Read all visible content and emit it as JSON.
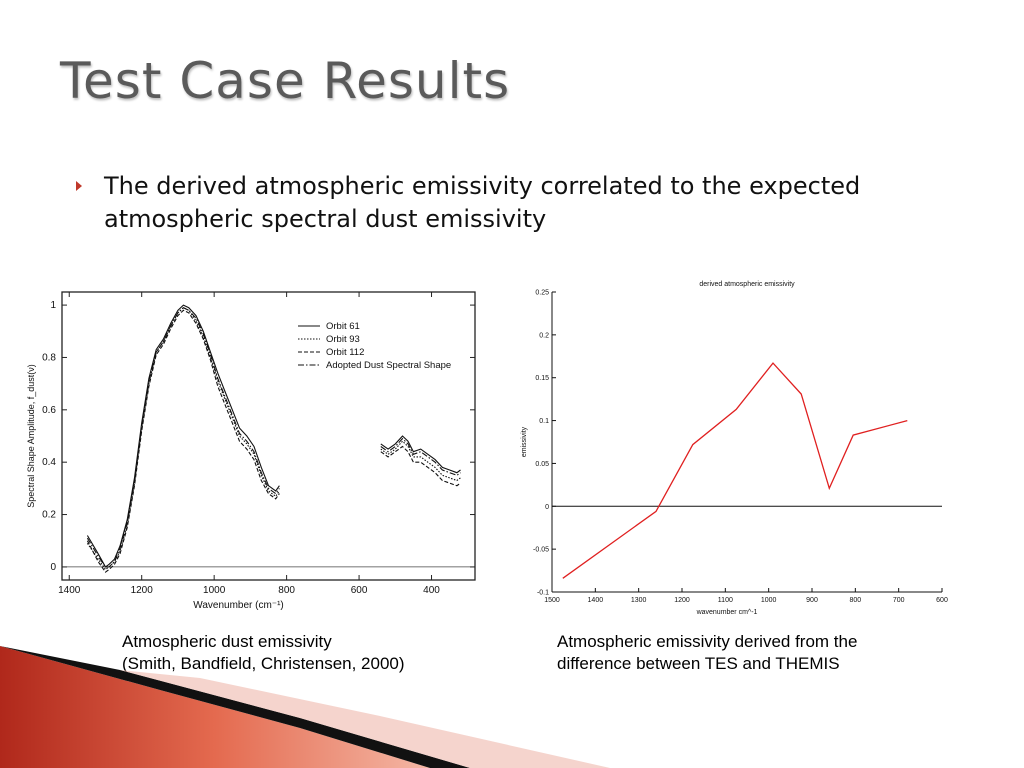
{
  "slide": {
    "title": "Test Case Results",
    "bullet": "The derived atmospheric emissivity correlated to the expected atmospheric spectral dust emissivity"
  },
  "captions": {
    "left": [
      "Atmospheric dust emissivity",
      "(Smith, Bandfield, Christensen, 2000)"
    ],
    "right": [
      "Atmospheric emissivity derived from the",
      "difference between TES and THEMIS"
    ]
  },
  "colors": {
    "title": "#5a5a5a",
    "bullet_marker": "#c0392b",
    "derived_line": "#e02020",
    "decor_red": "#c0392b",
    "decor_black": "#111111"
  },
  "chart_data": [
    {
      "type": "line",
      "title": "",
      "xlabel": "Wavenumber (cm⁻¹)",
      "ylabel": "Spectral Shape Amplitude, f_dust(ν)",
      "xlim": [
        1420,
        280
      ],
      "ylim": [
        -0.05,
        1.05
      ],
      "x_ticks": [
        1400,
        1200,
        1000,
        800,
        600,
        400
      ],
      "y_ticks": [
        0,
        0.2,
        0.4,
        0.6,
        0.8,
        1
      ],
      "grid": false,
      "legend_position": "top-right",
      "series": [
        {
          "name": "Orbit 61",
          "dash": "solid",
          "segments": [
            [
              [
                1350,
                0.12
              ],
              [
                1320,
                0.05
              ],
              [
                1300,
                0.0
              ],
              [
                1290,
                0.01
              ],
              [
                1275,
                0.03
              ],
              [
                1260,
                0.08
              ],
              [
                1240,
                0.18
              ],
              [
                1220,
                0.34
              ],
              [
                1200,
                0.55
              ],
              [
                1180,
                0.72
              ],
              [
                1160,
                0.83
              ],
              [
                1140,
                0.87
              ],
              [
                1120,
                0.93
              ],
              [
                1100,
                0.98
              ],
              [
                1085,
                1.0
              ],
              [
                1070,
                0.99
              ],
              [
                1050,
                0.96
              ],
              [
                1030,
                0.9
              ],
              [
                1010,
                0.82
              ],
              [
                990,
                0.74
              ],
              [
                970,
                0.67
              ],
              [
                950,
                0.6
              ],
              [
                930,
                0.53
              ],
              [
                910,
                0.5
              ],
              [
                890,
                0.46
              ],
              [
                870,
                0.38
              ],
              [
                850,
                0.31
              ],
              [
                830,
                0.29
              ],
              [
                820,
                0.31
              ]
            ],
            [
              [
                540,
                0.47
              ],
              [
                520,
                0.45
              ],
              [
                500,
                0.47
              ],
              [
                480,
                0.5
              ],
              [
                465,
                0.48
              ],
              [
                450,
                0.44
              ],
              [
                430,
                0.45
              ],
              [
                410,
                0.43
              ],
              [
                390,
                0.41
              ],
              [
                370,
                0.38
              ],
              [
                350,
                0.37
              ],
              [
                330,
                0.36
              ],
              [
                320,
                0.37
              ]
            ]
          ]
        },
        {
          "name": "Orbit 93",
          "dash": "dotted",
          "segments": [
            [
              [
                1350,
                0.09
              ],
              [
                1320,
                0.03
              ],
              [
                1300,
                -0.01
              ],
              [
                1290,
                0.0
              ],
              [
                1275,
                0.02
              ],
              [
                1260,
                0.06
              ],
              [
                1240,
                0.16
              ],
              [
                1220,
                0.32
              ],
              [
                1200,
                0.53
              ],
              [
                1180,
                0.7
              ],
              [
                1160,
                0.82
              ],
              [
                1140,
                0.86
              ],
              [
                1120,
                0.92
              ],
              [
                1100,
                0.97
              ],
              [
                1085,
                0.99
              ],
              [
                1070,
                0.98
              ],
              [
                1050,
                0.94
              ],
              [
                1030,
                0.88
              ],
              [
                1010,
                0.8
              ],
              [
                990,
                0.71
              ],
              [
                970,
                0.64
              ],
              [
                950,
                0.57
              ],
              [
                930,
                0.5
              ],
              [
                910,
                0.47
              ],
              [
                890,
                0.43
              ],
              [
                870,
                0.35
              ],
              [
                850,
                0.29
              ],
              [
                830,
                0.27
              ],
              [
                820,
                0.29
              ]
            ],
            [
              [
                540,
                0.45
              ],
              [
                520,
                0.43
              ],
              [
                500,
                0.45
              ],
              [
                480,
                0.48
              ],
              [
                465,
                0.46
              ],
              [
                450,
                0.42
              ],
              [
                430,
                0.42
              ],
              [
                410,
                0.4
              ],
              [
                390,
                0.38
              ],
              [
                370,
                0.35
              ],
              [
                350,
                0.34
              ],
              [
                330,
                0.33
              ],
              [
                320,
                0.34
              ]
            ]
          ]
        },
        {
          "name": "Orbit 112",
          "dash": "dashed",
          "segments": [
            [
              [
                1350,
                0.1
              ],
              [
                1320,
                0.02
              ],
              [
                1300,
                -0.02
              ],
              [
                1290,
                -0.01
              ],
              [
                1275,
                0.01
              ],
              [
                1260,
                0.05
              ],
              [
                1240,
                0.15
              ],
              [
                1220,
                0.31
              ],
              [
                1200,
                0.52
              ],
              [
                1180,
                0.69
              ],
              [
                1160,
                0.81
              ],
              [
                1140,
                0.85
              ],
              [
                1120,
                0.91
              ],
              [
                1100,
                0.96
              ],
              [
                1085,
                0.98
              ],
              [
                1070,
                0.97
              ],
              [
                1050,
                0.93
              ],
              [
                1030,
                0.87
              ],
              [
                1010,
                0.79
              ],
              [
                990,
                0.69
              ],
              [
                970,
                0.62
              ],
              [
                950,
                0.55
              ],
              [
                930,
                0.48
              ],
              [
                910,
                0.45
              ],
              [
                890,
                0.41
              ],
              [
                870,
                0.33
              ],
              [
                850,
                0.28
              ],
              [
                830,
                0.26
              ],
              [
                820,
                0.28
              ]
            ],
            [
              [
                540,
                0.44
              ],
              [
                520,
                0.42
              ],
              [
                500,
                0.44
              ],
              [
                480,
                0.46
              ],
              [
                465,
                0.44
              ],
              [
                450,
                0.4
              ],
              [
                430,
                0.4
              ],
              [
                410,
                0.38
              ],
              [
                390,
                0.36
              ],
              [
                370,
                0.33
              ],
              [
                350,
                0.32
              ],
              [
                330,
                0.31
              ],
              [
                320,
                0.32
              ]
            ]
          ]
        },
        {
          "name": "Adopted Dust Spectral Shape",
          "dash": "dashdot",
          "segments": [
            [
              [
                1350,
                0.11
              ],
              [
                1320,
                0.04
              ],
              [
                1300,
                0.0
              ],
              [
                1290,
                0.0
              ],
              [
                1275,
                0.02
              ],
              [
                1260,
                0.07
              ],
              [
                1240,
                0.17
              ],
              [
                1220,
                0.33
              ],
              [
                1200,
                0.54
              ],
              [
                1180,
                0.71
              ],
              [
                1160,
                0.82
              ],
              [
                1140,
                0.86
              ],
              [
                1120,
                0.92
              ],
              [
                1100,
                0.97
              ],
              [
                1085,
                0.99
              ],
              [
                1070,
                0.98
              ],
              [
                1050,
                0.95
              ],
              [
                1030,
                0.89
              ],
              [
                1010,
                0.81
              ],
              [
                990,
                0.72
              ],
              [
                970,
                0.65
              ],
              [
                950,
                0.58
              ],
              [
                930,
                0.51
              ],
              [
                910,
                0.48
              ],
              [
                890,
                0.44
              ],
              [
                870,
                0.36
              ],
              [
                850,
                0.3
              ],
              [
                830,
                0.28
              ],
              [
                820,
                0.3
              ]
            ],
            [
              [
                540,
                0.46
              ],
              [
                520,
                0.44
              ],
              [
                500,
                0.46
              ],
              [
                480,
                0.49
              ],
              [
                465,
                0.47
              ],
              [
                450,
                0.43
              ],
              [
                430,
                0.44
              ],
              [
                410,
                0.42
              ],
              [
                390,
                0.4
              ],
              [
                370,
                0.37
              ],
              [
                350,
                0.36
              ],
              [
                330,
                0.35
              ],
              [
                320,
                0.36
              ]
            ]
          ]
        }
      ]
    },
    {
      "type": "line",
      "title": "derived atmospheric emissivity",
      "xlabel": "wavenumber cm^-1",
      "ylabel": "emissivity",
      "xlim": [
        1500,
        600
      ],
      "ylim": [
        -0.1,
        0.25
      ],
      "x_ticks": [
        1500,
        1400,
        1300,
        1200,
        1100,
        1000,
        900,
        800,
        700,
        600
      ],
      "y_ticks": [
        -0.1,
        -0.05,
        0,
        0.05,
        0.1,
        0.15,
        0.2,
        0.25
      ],
      "grid": false,
      "zero_line": true,
      "series": [
        {
          "color": "#e02020",
          "x": [
            1475,
            1260,
            1175,
            1075,
            990,
            925,
            860,
            805,
            680
          ],
          "y": [
            -0.084,
            -0.006,
            0.072,
            0.113,
            0.167,
            0.131,
            0.021,
            0.083,
            0.1
          ]
        }
      ]
    }
  ]
}
